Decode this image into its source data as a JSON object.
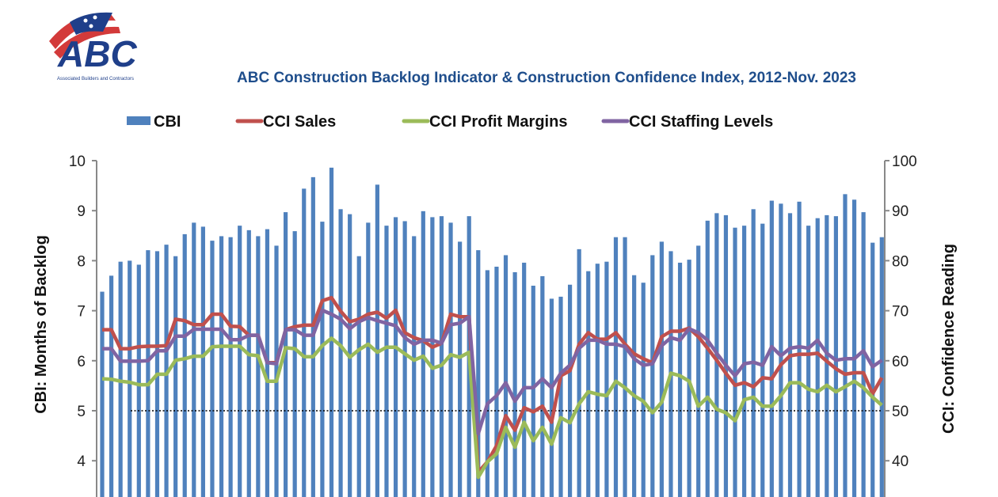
{
  "logo": {
    "text": "ABC",
    "subtext": "Associated Builders and Contractors"
  },
  "chart_data": {
    "type": "bar+line",
    "title": "ABC Construction Backlog Indicator & Construction Confidence Index, 2012-Nov. 2023",
    "ylabel": "CBI: Months of Backlog",
    "y2label": "CCI: Confidence Reading",
    "ylim": [
      3,
      10
    ],
    "y2lim": [
      30,
      100
    ],
    "yticks": [
      4,
      5,
      6,
      7,
      8,
      9,
      10
    ],
    "y2ticks": [
      40,
      50,
      60,
      70,
      80,
      90,
      100
    ],
    "reference_line": {
      "axis": "y2",
      "value": 50,
      "style": "dotted"
    },
    "legend_position": "top",
    "grid": false,
    "series": [
      {
        "name": "CBI",
        "type": "bar",
        "axis": "y",
        "color": "#4F81BD",
        "values": [
          7.38,
          7.7,
          7.98,
          8.0,
          7.92,
          8.21,
          8.19,
          8.32,
          8.09,
          8.53,
          8.76,
          8.68,
          8.4,
          8.49,
          8.47,
          8.7,
          8.61,
          8.49,
          8.63,
          8.3,
          8.97,
          8.59,
          9.44,
          9.67,
          8.78,
          9.86,
          9.03,
          8.93,
          8.09,
          8.76,
          9.52,
          8.7,
          8.87,
          8.79,
          8.49,
          8.99,
          8.87,
          8.89,
          8.76,
          8.38,
          8.89,
          8.21,
          7.81,
          7.88,
          8.11,
          7.77,
          7.96,
          7.5,
          7.69,
          7.24,
          7.28,
          7.52,
          8.23,
          7.79,
          7.94,
          7.98,
          8.47,
          8.47,
          7.71,
          7.56,
          8.11,
          8.38,
          8.19,
          7.96,
          8.02,
          8.3,
          8.8,
          8.95,
          8.91,
          8.66,
          8.7,
          9.03,
          8.74,
          9.2,
          9.14,
          8.95,
          9.18,
          8.7,
          8.85,
          8.91,
          8.89,
          9.33,
          9.22,
          8.97,
          8.36,
          8.47
        ]
      },
      {
        "name": "CCI Sales",
        "type": "line",
        "axis": "y2",
        "color": "#C0504D",
        "values": [
          66.2,
          66.2,
          62.4,
          62.4,
          62.8,
          62.9,
          62.9,
          63.0,
          68.3,
          68.0,
          67.2,
          67.2,
          69.3,
          69.3,
          66.9,
          66.8,
          65.1,
          65.1,
          59.6,
          59.6,
          66.2,
          66.8,
          67.1,
          67.1,
          72.0,
          72.6,
          69.9,
          67.8,
          68.3,
          69.3,
          69.7,
          68.5,
          70.1,
          65.6,
          64.6,
          64.0,
          62.7,
          63.5,
          69.3,
          68.8,
          68.8,
          37.7,
          39.8,
          43.0,
          49.0,
          46.1,
          50.6,
          49.8,
          50.9,
          47.7,
          57.0,
          58.0,
          63.3,
          65.6,
          64.3,
          64.3,
          65.6,
          63.3,
          61.4,
          60.4,
          59.6,
          64.8,
          65.9,
          65.9,
          66.5,
          64.8,
          62.5,
          60.1,
          57.5,
          55.1,
          55.6,
          54.8,
          56.6,
          56.4,
          59.2,
          61.0,
          61.3,
          61.3,
          61.5,
          59.9,
          58.4,
          57.3,
          57.6,
          57.6,
          53.4,
          56.6
        ]
      },
      {
        "name": "CCI Profit Margins",
        "type": "line",
        "axis": "y2",
        "color": "#9BBB59",
        "values": [
          56.4,
          56.3,
          55.9,
          55.7,
          55.2,
          55.2,
          57.3,
          57.3,
          60.1,
          60.4,
          60.9,
          60.9,
          62.8,
          62.9,
          62.9,
          62.9,
          61.2,
          61.0,
          55.9,
          55.9,
          62.6,
          62.4,
          60.8,
          60.8,
          63.0,
          64.5,
          63.0,
          60.7,
          62.2,
          63.3,
          61.7,
          62.7,
          62.7,
          61.4,
          60.1,
          60.9,
          58.5,
          59.1,
          61.2,
          60.7,
          61.7,
          36.7,
          39.8,
          41.4,
          46.7,
          42.7,
          47.7,
          44.0,
          46.7,
          43.3,
          48.6,
          47.6,
          51.4,
          53.8,
          53.3,
          53.0,
          55.9,
          54.6,
          53.0,
          51.9,
          49.6,
          51.7,
          57.5,
          57.0,
          55.9,
          50.9,
          52.7,
          50.3,
          49.6,
          48.0,
          52.2,
          52.7,
          50.9,
          50.9,
          53.0,
          55.6,
          55.6,
          54.3,
          53.8,
          55.1,
          53.8,
          54.8,
          55.9,
          54.6,
          52.7,
          51.1
        ]
      },
      {
        "name": "CCI Staffing Levels",
        "type": "line",
        "axis": "y2",
        "color": "#8064A2",
        "values": [
          62.4,
          62.4,
          59.9,
          59.9,
          59.9,
          60.0,
          62.0,
          62.0,
          64.9,
          64.9,
          66.3,
          66.3,
          66.3,
          66.3,
          64.2,
          64.2,
          65.1,
          65.1,
          59.6,
          59.4,
          66.2,
          66.2,
          65.1,
          65.1,
          70.1,
          69.3,
          68.3,
          66.4,
          67.8,
          68.6,
          68.0,
          67.5,
          67.0,
          64.6,
          63.3,
          64.1,
          64.1,
          63.5,
          67.2,
          67.5,
          68.8,
          45.4,
          51.4,
          53.0,
          55.6,
          51.9,
          54.6,
          54.6,
          56.4,
          54.6,
          57.5,
          59.1,
          62.5,
          64.1,
          64.1,
          63.3,
          63.3,
          62.8,
          60.4,
          59.1,
          59.4,
          63.0,
          64.6,
          64.1,
          66.4,
          65.6,
          64.1,
          61.5,
          59.1,
          57.0,
          59.4,
          59.7,
          59.1,
          62.8,
          61.0,
          62.5,
          62.8,
          62.5,
          64.1,
          61.5,
          60.1,
          60.4,
          60.4,
          62.0,
          58.8,
          60.1
        ]
      }
    ]
  }
}
